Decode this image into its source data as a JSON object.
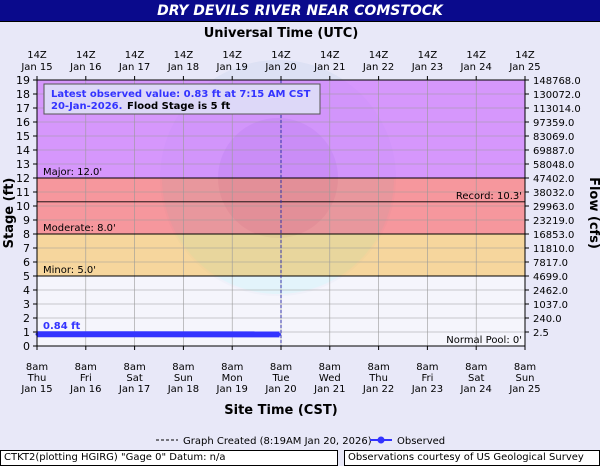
{
  "window_title": "DRY DEVILS RIVER NEAR COMSTOCK",
  "footer": {
    "left": "CTKT2(plotting HGIRG) \"Gage 0\" Datum: n/a",
    "right": "Observations courtesy of US Geological Survey"
  },
  "chart_data": {
    "type": "line",
    "title": "DRY DEVILS RIVER NEAR COMSTOCK",
    "top_axis_label": "Universal Time (UTC)",
    "xlabel": "Site Time (CST)",
    "ylabel": "Stage (ft)",
    "ylabel_right": "Flow (cfs)",
    "ylim": [
      0,
      19
    ],
    "y_ticks": [
      0,
      1,
      2,
      3,
      4,
      5,
      6,
      7,
      8,
      9,
      10,
      11,
      12,
      13,
      14,
      15,
      16,
      17,
      18,
      19
    ],
    "right_axis_ticks": [
      {
        "stage": 1,
        "flow": "2.5"
      },
      {
        "stage": 2,
        "flow": "240.0"
      },
      {
        "stage": 3,
        "flow": "1037.0"
      },
      {
        "stage": 4,
        "flow": "2462.0"
      },
      {
        "stage": 5,
        "flow": "4699.0"
      },
      {
        "stage": 6,
        "flow": "7817.0"
      },
      {
        "stage": 7,
        "flow": "11810.0"
      },
      {
        "stage": 8,
        "flow": "16853.0"
      },
      {
        "stage": 9,
        "flow": "23219.0"
      },
      {
        "stage": 10,
        "flow": "29963.0"
      },
      {
        "stage": 11,
        "flow": "38032.0"
      },
      {
        "stage": 12,
        "flow": "47402.0"
      },
      {
        "stage": 13,
        "flow": "58048.0"
      },
      {
        "stage": 14,
        "flow": "69887.0"
      },
      {
        "stage": 15,
        "flow": "83069.0"
      },
      {
        "stage": 16,
        "flow": "97359.0"
      },
      {
        "stage": 17,
        "flow": "113014.0"
      },
      {
        "stage": 18,
        "flow": "130072.0"
      },
      {
        "stage": 19,
        "flow": "148768.0"
      }
    ],
    "x_ticks_bottom": [
      [
        "8am",
        "Thu",
        "Jan 15"
      ],
      [
        "8am",
        "Fri",
        "Jan 16"
      ],
      [
        "8am",
        "Sat",
        "Jan 17"
      ],
      [
        "8am",
        "Sun",
        "Jan 18"
      ],
      [
        "8am",
        "Mon",
        "Jan 19"
      ],
      [
        "8am",
        "Tue",
        "Jan 20"
      ],
      [
        "8am",
        "Wed",
        "Jan 21"
      ],
      [
        "8am",
        "Thu",
        "Jan 22"
      ],
      [
        "8am",
        "Fri",
        "Jan 23"
      ],
      [
        "8am",
        "Sat",
        "Jan 24"
      ],
      [
        "8am",
        "Sun",
        "Jan 25"
      ]
    ],
    "x_ticks_top": [
      [
        "14Z",
        "Jan 15"
      ],
      [
        "14Z",
        "Jan 16"
      ],
      [
        "14Z",
        "Jan 17"
      ],
      [
        "14Z",
        "Jan 18"
      ],
      [
        "14Z",
        "Jan 19"
      ],
      [
        "14Z",
        "Jan 20"
      ],
      [
        "14Z",
        "Jan 21"
      ],
      [
        "14Z",
        "Jan 22"
      ],
      [
        "14Z",
        "Jan 23"
      ],
      [
        "14Z",
        "Jan 24"
      ],
      [
        "14Z",
        "Jan 25"
      ]
    ],
    "bands": [
      {
        "from": 0,
        "to": 5,
        "color": "#ffffff"
      },
      {
        "from": 5,
        "to": 8,
        "color": "#ffcc66"
      },
      {
        "from": 8,
        "to": 12,
        "color": "#ff6666"
      },
      {
        "from": 12,
        "to": 19,
        "color": "#cc66ff"
      }
    ],
    "thresholds": [
      {
        "label": "Major: 12.0'",
        "value": 12.0,
        "side": "left"
      },
      {
        "label": "Moderate: 8.0'",
        "value": 8.0,
        "side": "left"
      },
      {
        "label": "Minor: 5.0'",
        "value": 5.0,
        "side": "left"
      },
      {
        "label": "Record: 10.3'",
        "value": 10.3,
        "side": "right"
      },
      {
        "label": "Normal Pool: 0'",
        "value": 0,
        "side": "right"
      }
    ],
    "series": [
      {
        "name": "Observed",
        "color": "#3333ff",
        "x": [
          "2026-01-15 08:00",
          "2026-01-20 07:15"
        ],
        "y": [
          0.84,
          0.83
        ]
      }
    ],
    "series_annotation": "0.84 ft",
    "created_date": "Jan 20",
    "latest_box": {
      "line1": "Latest observed value: 0.83 ft at 7:15 AM CST",
      "line2_date": "20-Jan-2026.",
      "line2_rest": "Flood Stage is 5 ft"
    },
    "legend": {
      "created": "Graph Created (8:19AM Jan 20, 2026)",
      "observed": "Observed"
    },
    "grid": true
  }
}
